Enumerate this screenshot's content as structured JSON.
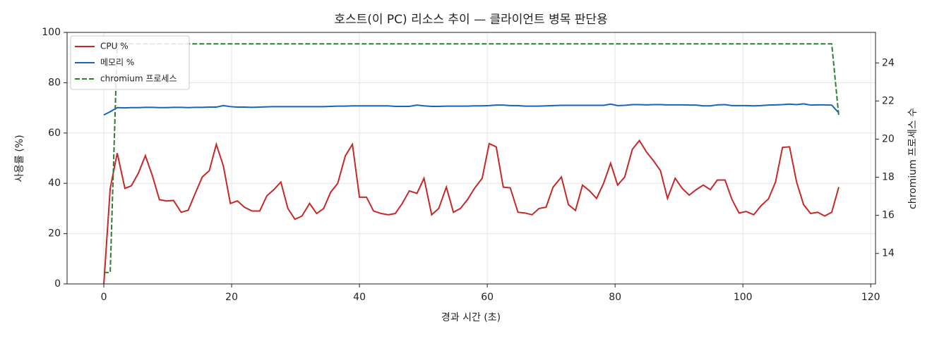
{
  "chart_data": {
    "type": "line",
    "title": "호스트(이 PC) 리소스 추이 — 클라이언트 병목 판단용",
    "xlabel": "경과 시간 (초)",
    "ylabel": "사용률 (%)",
    "y2label": "chromium 프로세스 수",
    "x": [
      0,
      1,
      2.1,
      3.3,
      4.3,
      5.4,
      6.5,
      7.6,
      8.7,
      9.8,
      10.9,
      12.1,
      13.2,
      14.3,
      15.4,
      16.5,
      17.6,
      18.7,
      19.8,
      20.9,
      22,
      23.2,
      24.4,
      25.5,
      26.6,
      27.7,
      28.8,
      29.9,
      31,
      32.2,
      33.3,
      34.4,
      35.5,
      36.6,
      37.8,
      38.9,
      40,
      41.1,
      42.2,
      43.4,
      44.5,
      45.6,
      46.7,
      47.8,
      49,
      50.1,
      51.3,
      52.4,
      53.6,
      54.7,
      55.8,
      56.9,
      58,
      59.2,
      60.3,
      61.4,
      62.5,
      63.6,
      64.8,
      65.9,
      67,
      68.1,
      69.2,
      70.3,
      71.6,
      72.7,
      73.8,
      74.9,
      76,
      77.1,
      78.2,
      79.3,
      80.4,
      81.5,
      82.7,
      83.8,
      84.9,
      86,
      87.1,
      88.2,
      89.4,
      90.5,
      91.6,
      92.7,
      93.8,
      94.9,
      96,
      97.2,
      98.3,
      99.4,
      100.5,
      101.7,
      102.8,
      104,
      105.1,
      106.2,
      107.3,
      108.4,
      109.5,
      110.6,
      111.7,
      112.8,
      113.9,
      115
    ],
    "series": [
      {
        "name": "CPU %",
        "color": "#c62828",
        "values": [
          0,
          38,
          52,
          38,
          39,
          44,
          51,
          43,
          33.5,
          33,
          33.2,
          28.5,
          29.3,
          36,
          42.5,
          45,
          55.5,
          47,
          32,
          33,
          30.5,
          29,
          29,
          35,
          37.5,
          40.5,
          30,
          25.7,
          27,
          32,
          28,
          30,
          36.5,
          40,
          51,
          55.5,
          34.5,
          34.5,
          29,
          28,
          27.5,
          28,
          32,
          37,
          36,
          42,
          27.5,
          30,
          38.5,
          28.5,
          30,
          33.5,
          38,
          42,
          55.8,
          54.5,
          38.5,
          38.2,
          28.5,
          28.2,
          27.5,
          30,
          30.5,
          38.5,
          42.5,
          31.5,
          29.2,
          39.3,
          37,
          34,
          40,
          48,
          39.3,
          42.5,
          53.5,
          57,
          52.5,
          49,
          45,
          34,
          42,
          38,
          35.3,
          37.5,
          39.3,
          37.5,
          41.3,
          41.3,
          33.5,
          28.2,
          28.8,
          27.5,
          31,
          33.8,
          40.5,
          54.3,
          54.5,
          40.5,
          31.5,
          28,
          28.5,
          27,
          28.5,
          38.5
        ]
      },
      {
        "name": "메모리 %",
        "color": "#1565c0",
        "values": [
          67.2,
          68.5,
          70.1,
          70.0,
          70.1,
          70.1,
          70.2,
          70.2,
          70.1,
          70.1,
          70.2,
          70.2,
          70.1,
          70.2,
          70.2,
          70.3,
          70.3,
          70.9,
          70.5,
          70.3,
          70.3,
          70.2,
          70.3,
          70.4,
          70.5,
          70.5,
          70.5,
          70.5,
          70.5,
          70.5,
          70.5,
          70.5,
          70.6,
          70.7,
          70.7,
          70.8,
          70.8,
          70.8,
          70.8,
          70.8,
          70.8,
          70.6,
          70.6,
          70.6,
          71.1,
          70.8,
          70.6,
          70.6,
          70.7,
          70.7,
          70.7,
          70.7,
          70.8,
          70.8,
          70.9,
          71.1,
          71.1,
          70.9,
          70.9,
          70.7,
          70.7,
          70.7,
          70.8,
          70.9,
          71.0,
          71.0,
          71.0,
          71.0,
          71.0,
          71.0,
          71.0,
          71.5,
          70.9,
          71.0,
          71.3,
          71.3,
          71.2,
          71.3,
          71.3,
          71.2,
          71.2,
          71.2,
          71.1,
          71.1,
          70.8,
          70.8,
          71.2,
          71.3,
          70.9,
          70.9,
          70.9,
          70.8,
          70.9,
          71.1,
          71.2,
          71.3,
          71.5,
          71.3,
          71.6,
          71.1,
          71.2,
          71.2,
          71.1,
          68.0
        ]
      },
      {
        "name": "chromium 프로세스",
        "color": "#2e7d32",
        "dashed": true,
        "axis": "y2",
        "values": [
          13,
          13,
          25,
          25,
          25,
          25,
          25,
          25,
          25,
          25,
          25,
          25,
          25,
          25,
          25,
          25,
          25,
          25,
          25,
          25,
          25,
          25,
          25,
          25,
          25,
          25,
          25,
          25,
          25,
          25,
          25,
          25,
          25,
          25,
          25,
          25,
          25,
          25,
          25,
          25,
          25,
          25,
          25,
          25,
          25,
          25,
          25,
          25,
          25,
          25,
          25,
          25,
          25,
          25,
          25,
          25,
          25,
          25,
          25,
          25,
          25,
          25,
          25,
          25,
          25,
          25,
          25,
          25,
          25,
          25,
          25,
          25,
          25,
          25,
          25,
          25,
          25,
          25,
          25,
          25,
          25,
          25,
          25,
          25,
          25,
          25,
          25,
          25,
          25,
          25,
          25,
          25,
          25,
          25,
          25,
          25,
          25,
          25,
          25,
          25,
          25,
          25,
          25,
          21.2
        ]
      }
    ],
    "xlim": [
      -5.75,
      120.75
    ],
    "xticks": [
      0,
      20,
      40,
      60,
      80,
      100,
      120
    ],
    "ylim": [
      0,
      100
    ],
    "yticks": [
      0,
      20,
      40,
      60,
      80,
      100
    ],
    "y2lim": [
      12.4,
      25.6
    ],
    "y2ticks": [
      14,
      16,
      18,
      20,
      22,
      24
    ],
    "grid": true,
    "legend": "upper-left"
  }
}
